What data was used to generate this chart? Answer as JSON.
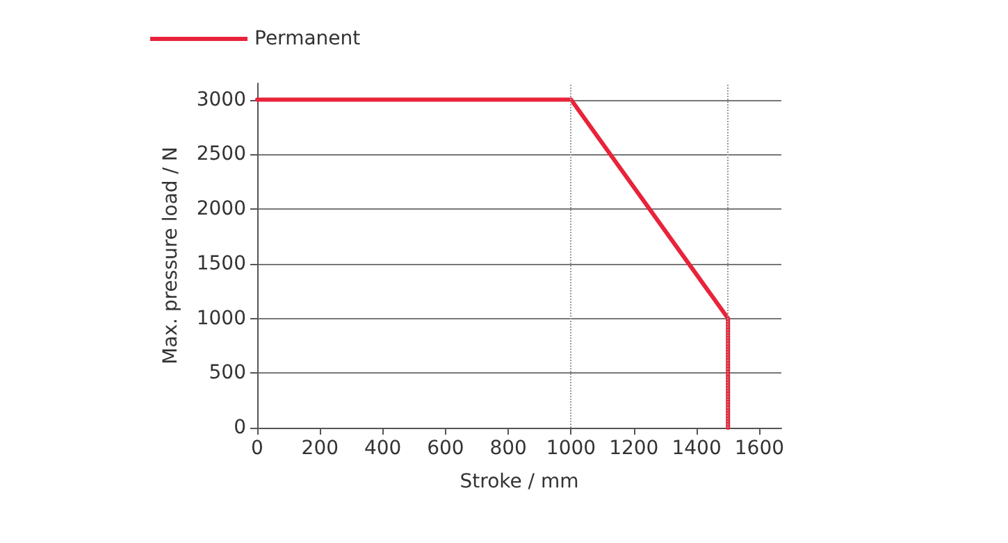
{
  "chart_data": {
    "type": "line",
    "xlabel": "Stroke / mm",
    "ylabel": "Max. pressure load / N",
    "series": [
      {
        "name": "Permanent",
        "color": "#e8233a",
        "x": [
          0,
          1000,
          1500,
          1500
        ],
        "values": [
          3000,
          3000,
          1000,
          0
        ]
      }
    ],
    "xlim": [
      0,
      1670
    ],
    "xticks": [
      0,
      200,
      400,
      600,
      800,
      1000,
      1200,
      1400,
      1600
    ],
    "ylim": [
      0,
      3150
    ],
    "yticks": [
      0,
      500,
      1000,
      1500,
      2000,
      2500,
      3000
    ],
    "ref_lines": [
      {
        "axis": "x",
        "value": 1000,
        "line_style": "dotted",
        "color": "#999999"
      },
      {
        "axis": "x",
        "value": 1500,
        "line_style": "dotted",
        "color": "#999999"
      }
    ],
    "grid": "y",
    "legend": "top left",
    "marker": "none",
    "line_style": "solid"
  }
}
